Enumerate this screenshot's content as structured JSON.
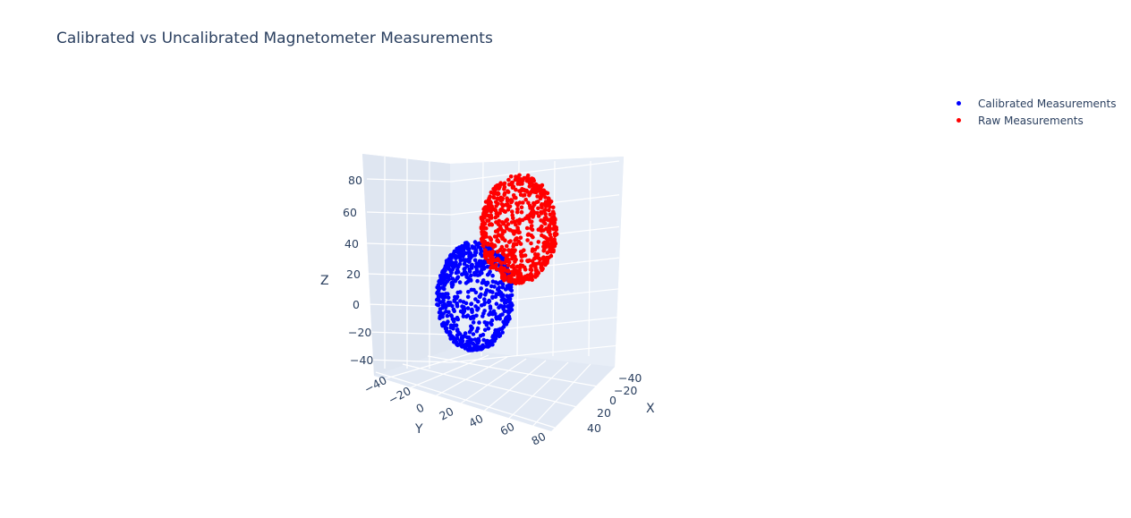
{
  "chart_data": {
    "type": "scatter3d",
    "title": "Calibrated vs Uncalibrated Magnetometer Measurements",
    "axes": {
      "x": {
        "label": "X",
        "ticks": [
          "−40",
          "−20",
          "0",
          "20",
          "40"
        ]
      },
      "y": {
        "label": "Y",
        "ticks": [
          "−40",
          "−20",
          "0",
          "20",
          "40",
          "60",
          "80"
        ]
      },
      "z": {
        "label": "Z",
        "ticks": [
          "80",
          "60",
          "40",
          "20",
          "0",
          "−20",
          "−40"
        ]
      }
    },
    "series": [
      {
        "name": "Calibrated Measurements",
        "color": "#0000ff",
        "center": [
          0,
          0,
          0
        ],
        "radius": 48,
        "points": 700
      },
      {
        "name": "Raw Measurements",
        "color": "#ff0000",
        "center": [
          -20,
          45,
          50
        ],
        "radius": 48,
        "points": 700
      }
    ],
    "legend_position": "top-right",
    "grid": true
  }
}
